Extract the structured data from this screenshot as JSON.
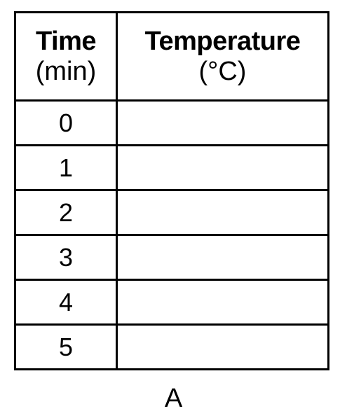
{
  "table": {
    "headers": [
      {
        "title": "Time",
        "unit": "(min)"
      },
      {
        "title": "Temperature",
        "unit": "(°C)"
      }
    ],
    "rows": [
      {
        "time": "0",
        "temperature": ""
      },
      {
        "time": "1",
        "temperature": ""
      },
      {
        "time": "2",
        "temperature": ""
      },
      {
        "time": "3",
        "temperature": ""
      },
      {
        "time": "4",
        "temperature": ""
      },
      {
        "time": "5",
        "temperature": ""
      }
    ]
  },
  "caption": "A"
}
